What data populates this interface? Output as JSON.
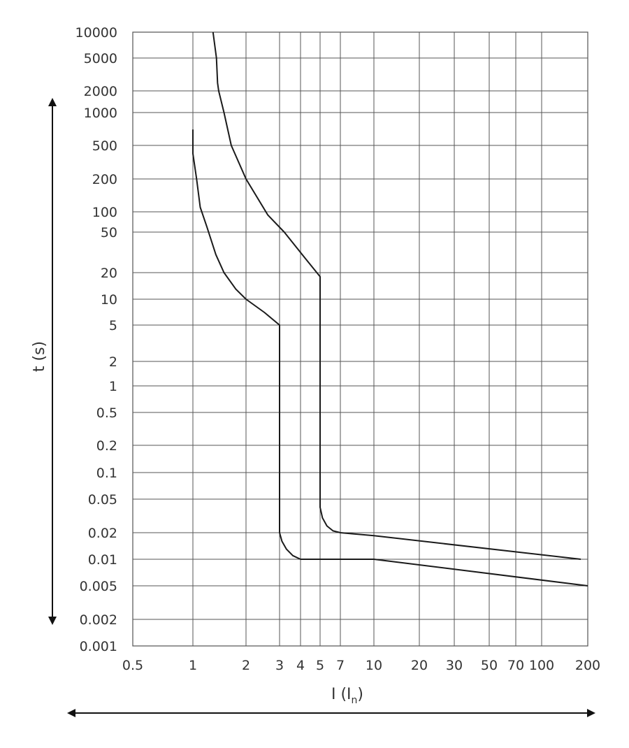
{
  "chart_data": {
    "type": "line",
    "title": "",
    "xlabel": "I (I",
    "xlabel_subscript": "n",
    "xlabel_close": ")",
    "ylabel": "t (s)",
    "x_scale": "log",
    "y_scale": "log",
    "xlim": [
      0.5,
      200
    ],
    "ylim": [
      0.001,
      10000
    ],
    "grid": true,
    "x_ticks": [
      0.5,
      1,
      2,
      3,
      4,
      5,
      7,
      10,
      20,
      30,
      50,
      70,
      100,
      200
    ],
    "x_tick_labels": [
      "0.5",
      "1",
      "2",
      "3",
      "4",
      "5",
      "7",
      "10",
      "20",
      "30",
      "50",
      "70",
      "100",
      "200"
    ],
    "y_ticks": [
      10000,
      5000,
      2000,
      1000,
      500,
      200,
      100,
      50,
      20,
      10,
      5,
      2,
      1,
      0.5,
      0.2,
      0.1,
      0.05,
      0.02,
      0.01,
      0.005,
      0.002,
      0.001
    ],
    "y_tick_labels": [
      "10000",
      "5000",
      "2000",
      "1000",
      "500",
      "200",
      "100",
      "50",
      "20",
      "10",
      "5",
      "2",
      "1",
      "0.5",
      "0.2",
      "0.1",
      "0.05",
      "0.02",
      "0.01",
      "0.005",
      "0.002",
      "0.001"
    ],
    "series": [
      {
        "line_color": "#1a1a1a",
        "points": [
          [
            1.0,
            700
          ],
          [
            1.0,
            400
          ],
          [
            1.05,
            200
          ],
          [
            1.1,
            110
          ],
          [
            1.2,
            60
          ],
          [
            1.35,
            30
          ],
          [
            1.5,
            20
          ],
          [
            1.75,
            13
          ],
          [
            2.0,
            10
          ],
          [
            2.5,
            7
          ],
          [
            3.0,
            5
          ],
          [
            3.0,
            0.02
          ],
          [
            3.1,
            0.016
          ],
          [
            3.3,
            0.013
          ],
          [
            3.6,
            0.011
          ],
          [
            4.0,
            0.01
          ],
          [
            10,
            0.01
          ],
          [
            200,
            0.005
          ]
        ]
      },
      {
        "line_color": "#1a1a1a",
        "points": [
          [
            1.3,
            10000
          ],
          [
            1.36,
            5000
          ],
          [
            1.38,
            2500
          ],
          [
            1.4,
            2000
          ],
          [
            1.5,
            1000
          ],
          [
            1.65,
            500
          ],
          [
            2.0,
            200
          ],
          [
            2.6,
            90
          ],
          [
            3.2,
            50
          ],
          [
            4.2,
            28
          ],
          [
            5.0,
            18
          ],
          [
            5.0,
            0.04
          ],
          [
            5.2,
            0.03
          ],
          [
            5.6,
            0.024
          ],
          [
            6.2,
            0.021
          ],
          [
            7.0,
            0.02
          ],
          [
            10,
            0.0185
          ],
          [
            180,
            0.01
          ]
        ]
      }
    ]
  }
}
